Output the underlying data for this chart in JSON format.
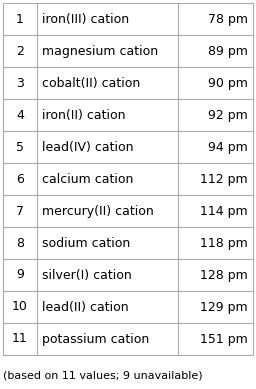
{
  "rows": [
    {
      "rank": "1",
      "name": "iron(III) cation",
      "value": "78 pm"
    },
    {
      "rank": "2",
      "name": "magnesium cation",
      "value": "89 pm"
    },
    {
      "rank": "3",
      "name": "cobalt(II) cation",
      "value": "90 pm"
    },
    {
      "rank": "4",
      "name": "iron(II) cation",
      "value": "92 pm"
    },
    {
      "rank": "5",
      "name": "lead(IV) cation",
      "value": "94 pm"
    },
    {
      "rank": "6",
      "name": "calcium cation",
      "value": "112 pm"
    },
    {
      "rank": "7",
      "name": "mercury(II) cation",
      "value": "114 pm"
    },
    {
      "rank": "8",
      "name": "sodium cation",
      "value": "118 pm"
    },
    {
      "rank": "9",
      "name": "silver(I) cation",
      "value": "128 pm"
    },
    {
      "rank": "10",
      "name": "lead(II) cation",
      "value": "129 pm"
    },
    {
      "rank": "11",
      "name": "potassium cation",
      "value": "151 pm"
    }
  ],
  "footer": "(based on 11 values; 9 unavailable)",
  "bg_color": "#ffffff",
  "border_color": "#aaaaaa",
  "text_color": "#000000",
  "font_size": 9.0,
  "footer_font_size": 8.0
}
